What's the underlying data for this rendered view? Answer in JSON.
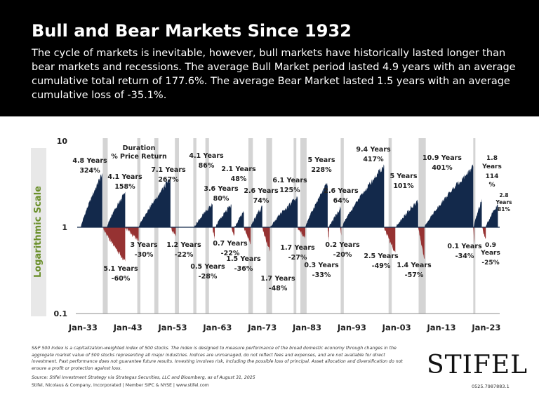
{
  "header": {
    "title": "Bull and Bear Markets Since 1932",
    "subtitle": "The cycle of markets is inevitable, however, bull markets have historically lasted longer than bear markets and recessions. The average Bull Market period lasted 4.9 years with an average cumulative total return of 177.6%. The average Bear Market lasted 1.5 years with an average cumulative loss of -35.1%."
  },
  "chart_data": {
    "type": "area",
    "ylabel": "Logarithmic Scale",
    "y_scale": "log",
    "ylim": [
      0.1,
      10
    ],
    "y_ticks": [
      "10",
      "1",
      "0.1"
    ],
    "x_ticks": [
      "Jan-33",
      "Jan-43",
      "Jan-53",
      "Jan-63",
      "Jan-73",
      "Jan-83",
      "Jan-93",
      "Jan-03",
      "Jan-13",
      "Jan-23"
    ],
    "legend_text": [
      "Duration",
      "% Price Return"
    ],
    "colors": {
      "bull": "#13294b",
      "bear": "#963232",
      "recession": "#d4d4d4"
    },
    "bull_markets": [
      {
        "start": 1932.5,
        "years": 4.8,
        "end_value": 4.24,
        "duration": "4.8 Years",
        "ret": "324%"
      },
      {
        "start": 1938.3,
        "years": 4.1,
        "end_value": 2.58,
        "duration": "4.1 Years",
        "ret": "158%"
      },
      {
        "start": 1945.4,
        "years": 7.1,
        "end_value": 3.67,
        "duration": "7.1 Years",
        "ret": "267%"
      },
      {
        "start": 1957.8,
        "years": 4.1,
        "end_value": 1.86,
        "duration": "4.1 Years",
        "ret": "86%"
      },
      {
        "start": 1962.5,
        "years": 3.6,
        "end_value": 1.8,
        "duration": "3.6 Years",
        "ret": "80%"
      },
      {
        "start": 1966.8,
        "years": 2.1,
        "end_value": 1.48,
        "duration": "2.1 Years",
        "ret": "48%"
      },
      {
        "start": 1970.4,
        "years": 2.6,
        "end_value": 1.74,
        "duration": "2.6 Years",
        "ret": "74%"
      },
      {
        "start": 1974.8,
        "years": 6.1,
        "end_value": 2.25,
        "duration": "6.1 Years",
        "ret": "125%"
      },
      {
        "start": 1982.6,
        "years": 5.0,
        "end_value": 3.28,
        "duration": "5 Years",
        "ret": "228%"
      },
      {
        "start": 1987.9,
        "years": 2.6,
        "end_value": 1.64,
        "duration": "2.6 Years",
        "ret": "64%"
      },
      {
        "start": 1990.8,
        "years": 9.4,
        "end_value": 5.17,
        "duration": "9.4 Years",
        "ret": "417%"
      },
      {
        "start": 2002.8,
        "years": 5.0,
        "end_value": 2.01,
        "duration": "5 Years",
        "ret": "101%"
      },
      {
        "start": 2009.2,
        "years": 10.9,
        "end_value": 5.01,
        "duration": "10.9 Years",
        "ret": "401%"
      },
      {
        "start": 2020.2,
        "years": 1.8,
        "end_value": 2.14,
        "duration": "1.8 Years",
        "ret": "114 %"
      },
      {
        "start": 2022.8,
        "years": 2.8,
        "end_value": 1.81,
        "duration": "2.8 Years",
        "ret": "81%"
      }
    ],
    "bear_markets": [
      {
        "start": 1937.3,
        "years": 5.1,
        "end_value": 0.4,
        "duration": "5.1 Years",
        "ret": "-60%"
      },
      {
        "start": 1942.4,
        "years": 3.0,
        "end_value": 0.7,
        "duration": "3 Years",
        "ret": "-30%"
      },
      {
        "start": 1952.5,
        "years": 1.2,
        "end_value": 0.78,
        "duration": "1.2 Years",
        "ret": "-22%"
      },
      {
        "start": 1961.9,
        "years": 0.5,
        "end_value": 0.72,
        "duration": "0.5 Years",
        "ret": "-28%"
      },
      {
        "start": 1966.1,
        "years": 0.7,
        "end_value": 0.78,
        "duration": "0.7 Years",
        "ret": "-22%"
      },
      {
        "start": 1968.9,
        "years": 1.5,
        "end_value": 0.64,
        "duration": "1.5 Years",
        "ret": "-36%"
      },
      {
        "start": 1973.0,
        "years": 1.7,
        "end_value": 0.52,
        "duration": "1.7 Years",
        "ret": "-48%"
      },
      {
        "start": 1980.9,
        "years": 1.7,
        "end_value": 0.73,
        "duration": "1.7 Years",
        "ret": "-27%"
      },
      {
        "start": 1987.6,
        "years": 0.3,
        "end_value": 0.67,
        "duration": "0.3 Years",
        "ret": "-33%"
      },
      {
        "start": 1990.4,
        "years": 0.2,
        "end_value": 0.8,
        "duration": "0.2 Years",
        "ret": "-20%"
      },
      {
        "start": 2000.2,
        "years": 2.5,
        "end_value": 0.51,
        "duration": "2.5 Years",
        "ret": "-49%"
      },
      {
        "start": 2007.8,
        "years": 1.4,
        "end_value": 0.43,
        "duration": "1.4 Years",
        "ret": "-57%"
      },
      {
        "start": 2020.1,
        "years": 0.1,
        "end_value": 0.66,
        "duration": "0.1 Years",
        "ret": "-34%"
      },
      {
        "start": 2022.0,
        "years": 0.9,
        "end_value": 0.75,
        "duration": "0.9 Years",
        "ret": "-25%"
      }
    ],
    "recessions": [
      [
        1937.4,
        1938.5
      ],
      [
        1945.1,
        1945.8
      ],
      [
        1948.9,
        1949.8
      ],
      [
        1953.5,
        1954.4
      ],
      [
        1957.6,
        1958.3
      ],
      [
        1960.3,
        1961.1
      ],
      [
        1969.9,
        1970.9
      ],
      [
        1973.9,
        1975.2
      ],
      [
        1980.0,
        1980.6
      ],
      [
        1981.5,
        1982.9
      ],
      [
        1990.5,
        1991.2
      ],
      [
        2001.2,
        2001.9
      ],
      [
        2007.9,
        2009.5
      ],
      [
        2020.1,
        2020.4
      ]
    ]
  },
  "notes": {
    "disclaimer": "S&P 500 Index is a capitalization-weighted index of 500 stocks. The index is designed to measure performance of the broad domestic economy through changes in the aggregate market value of 500 stocks representing all major industries. Indices are unmanaged, do not reflect fees and expenses, and are not available for direct investment. Past performance does not guarantee future results. Investing involves risk, including the possible loss of principal. Asset allocation and diversification do not ensure a profit or protection against loss.",
    "source": "Source: Stifel Investment Strategy via Strategas Securities, LLC and Bloomberg, as of August 31, 2025",
    "footer": "Stifel, Nicolaus & Company, Incorporated | Member SIPC & NYSE | www.stifel.com",
    "logo": "STIFEL",
    "code": "0525.7987883.1"
  }
}
